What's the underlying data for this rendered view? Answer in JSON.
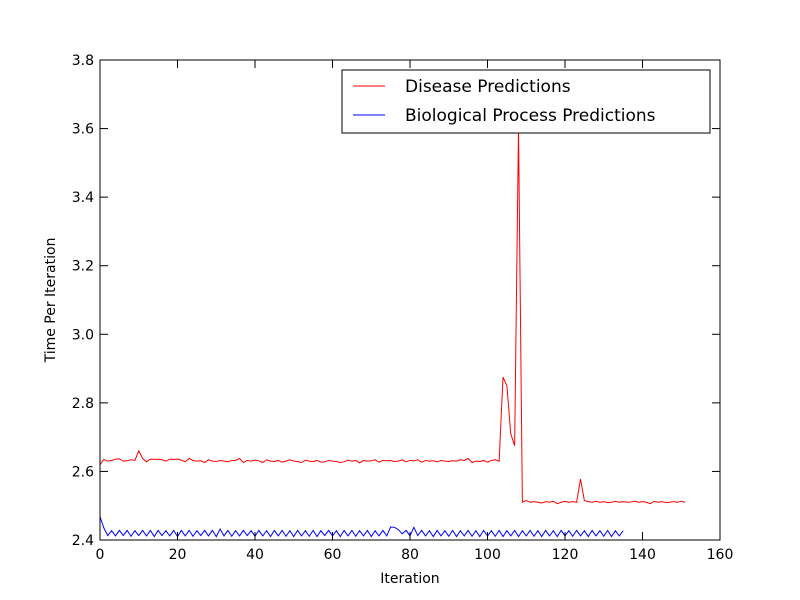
{
  "chart_data": {
    "type": "line",
    "title": "",
    "xlabel": "Iteration",
    "ylabel": "Time Per Iteration",
    "xlim": [
      0,
      160
    ],
    "ylim": [
      2.4,
      3.8
    ],
    "xticks": [
      0,
      20,
      40,
      60,
      80,
      100,
      120,
      140,
      160
    ],
    "yticks": [
      2.4,
      2.6,
      2.8,
      3.0,
      3.2,
      3.4,
      3.6,
      3.8
    ],
    "xtick_labels": [
      "0",
      "20",
      "40",
      "60",
      "80",
      "100",
      "120",
      "140",
      "160"
    ],
    "ytick_labels": [
      "2.4",
      "2.6",
      "2.8",
      "3.0",
      "3.2",
      "3.4",
      "3.6",
      "3.8"
    ],
    "grid": false,
    "legend_position": "top-right",
    "series": [
      {
        "name": "Disease Predictions",
        "color": "#ff0000",
        "x": [
          0,
          1,
          2,
          3,
          4,
          5,
          6,
          7,
          8,
          9,
          10,
          11,
          12,
          13,
          14,
          15,
          16,
          17,
          18,
          19,
          20,
          21,
          22,
          23,
          24,
          25,
          26,
          27,
          28,
          29,
          30,
          31,
          32,
          33,
          34,
          35,
          36,
          37,
          38,
          39,
          40,
          41,
          42,
          43,
          44,
          45,
          46,
          47,
          48,
          49,
          50,
          51,
          52,
          53,
          54,
          55,
          56,
          57,
          58,
          59,
          60,
          61,
          62,
          63,
          64,
          65,
          66,
          67,
          68,
          69,
          70,
          71,
          72,
          73,
          74,
          75,
          76,
          77,
          78,
          79,
          80,
          81,
          82,
          83,
          84,
          85,
          86,
          87,
          88,
          89,
          90,
          91,
          92,
          93,
          94,
          95,
          96,
          97,
          98,
          99,
          100,
          101,
          102,
          103,
          104,
          105,
          106,
          107,
          108,
          109,
          110,
          111,
          112,
          113,
          114,
          115,
          116,
          117,
          118,
          119,
          120,
          121,
          122,
          123,
          124,
          125,
          126,
          127,
          128,
          129,
          130,
          131,
          132,
          133,
          134,
          135,
          136,
          137,
          138,
          139,
          140,
          141,
          142,
          143,
          144,
          145,
          146,
          147,
          148,
          149,
          150,
          151
        ],
        "y": [
          2.62,
          2.635,
          2.63,
          2.632,
          2.636,
          2.637,
          2.63,
          2.631,
          2.634,
          2.632,
          2.66,
          2.638,
          2.628,
          2.636,
          2.635,
          2.636,
          2.634,
          2.63,
          2.636,
          2.635,
          2.636,
          2.633,
          2.628,
          2.638,
          2.632,
          2.63,
          2.631,
          2.626,
          2.634,
          2.63,
          2.629,
          2.632,
          2.63,
          2.628,
          2.632,
          2.632,
          2.638,
          2.626,
          2.632,
          2.63,
          2.633,
          2.631,
          2.626,
          2.634,
          2.63,
          2.629,
          2.632,
          2.627,
          2.63,
          2.634,
          2.63,
          2.629,
          2.626,
          2.633,
          2.63,
          2.629,
          2.632,
          2.627,
          2.628,
          2.632,
          2.63,
          2.629,
          2.626,
          2.628,
          2.633,
          2.63,
          2.632,
          2.625,
          2.632,
          2.63,
          2.631,
          2.634,
          2.627,
          2.632,
          2.631,
          2.632,
          2.629,
          2.63,
          2.634,
          2.628,
          2.632,
          2.631,
          2.634,
          2.627,
          2.632,
          2.63,
          2.631,
          2.628,
          2.632,
          2.63,
          2.629,
          2.631,
          2.63,
          2.634,
          2.632,
          2.638,
          2.626,
          2.63,
          2.629,
          2.632,
          2.627,
          2.632,
          2.634,
          2.63,
          2.875,
          2.85,
          2.71,
          2.675,
          3.6,
          2.51,
          2.515,
          2.51,
          2.512,
          2.51,
          2.508,
          2.512,
          2.51,
          2.513,
          2.506,
          2.51,
          2.513,
          2.51,
          2.512,
          2.51,
          2.578,
          2.515,
          2.512,
          2.51,
          2.513,
          2.51,
          2.512,
          2.509,
          2.51,
          2.513,
          2.51,
          2.512,
          2.51,
          2.511,
          2.513,
          2.51,
          2.512,
          2.51,
          2.506,
          2.513,
          2.51,
          2.512,
          2.509,
          2.51,
          2.512,
          2.51,
          2.513,
          2.51
        ]
      },
      {
        "name": "Biological Process Predictions",
        "color": "#0000ff",
        "x": [
          0,
          1,
          2,
          3,
          4,
          5,
          6,
          7,
          8,
          9,
          10,
          11,
          12,
          13,
          14,
          15,
          16,
          17,
          18,
          19,
          20,
          21,
          22,
          23,
          24,
          25,
          26,
          27,
          28,
          29,
          30,
          31,
          32,
          33,
          34,
          35,
          36,
          37,
          38,
          39,
          40,
          41,
          42,
          43,
          44,
          45,
          46,
          47,
          48,
          49,
          50,
          51,
          52,
          53,
          54,
          55,
          56,
          57,
          58,
          59,
          60,
          61,
          62,
          63,
          64,
          65,
          66,
          67,
          68,
          69,
          70,
          71,
          72,
          73,
          74,
          75,
          76,
          77,
          78,
          79,
          80,
          81,
          82,
          83,
          84,
          85,
          86,
          87,
          88,
          89,
          90,
          91,
          92,
          93,
          94,
          95,
          96,
          97,
          98,
          99,
          100,
          101,
          102,
          103,
          104,
          105,
          106,
          107,
          108,
          109,
          110,
          111,
          112,
          113,
          114,
          115,
          116,
          117,
          118,
          119,
          120,
          121,
          122,
          123,
          124,
          125,
          126,
          127,
          128,
          129,
          130,
          131,
          132,
          133,
          134,
          135
        ],
        "y": [
          2.468,
          2.435,
          2.413,
          2.427,
          2.412,
          2.428,
          2.413,
          2.428,
          2.411,
          2.427,
          2.413,
          2.428,
          2.412,
          2.428,
          2.41,
          2.428,
          2.413,
          2.427,
          2.412,
          2.428,
          2.41,
          2.428,
          2.412,
          2.428,
          2.411,
          2.427,
          2.413,
          2.428,
          2.412,
          2.428,
          2.41,
          2.432,
          2.412,
          2.428,
          2.411,
          2.427,
          2.412,
          2.428,
          2.413,
          2.427,
          2.411,
          2.428,
          2.412,
          2.427,
          2.41,
          2.428,
          2.412,
          2.428,
          2.411,
          2.427,
          2.41,
          2.428,
          2.412,
          2.427,
          2.411,
          2.428,
          2.41,
          2.427,
          2.413,
          2.428,
          2.412,
          2.427,
          2.41,
          2.428,
          2.412,
          2.428,
          2.411,
          2.427,
          2.412,
          2.428,
          2.41,
          2.427,
          2.412,
          2.428,
          2.412,
          2.438,
          2.437,
          2.43,
          2.418,
          2.428,
          2.412,
          2.437,
          2.413,
          2.428,
          2.412,
          2.427,
          2.41,
          2.428,
          2.412,
          2.427,
          2.411,
          2.428,
          2.41,
          2.427,
          2.412,
          2.428,
          2.411,
          2.427,
          2.41,
          2.428,
          2.412,
          2.427,
          2.411,
          2.428,
          2.41,
          2.427,
          2.412,
          2.428,
          2.41,
          2.427,
          2.412,
          2.428,
          2.411,
          2.427,
          2.41,
          2.428,
          2.412,
          2.427,
          2.41,
          2.428,
          2.412,
          2.427,
          2.411,
          2.428,
          2.412,
          2.427,
          2.41,
          2.428,
          2.412,
          2.427,
          2.411,
          2.428,
          2.41,
          2.427,
          2.412,
          2.427
        ]
      }
    ]
  }
}
